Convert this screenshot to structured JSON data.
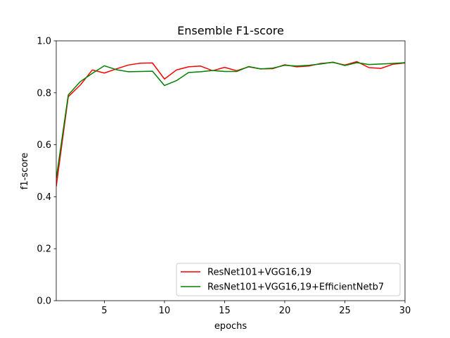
{
  "chart_data": {
    "type": "line",
    "title": "Ensemble F1-score",
    "xlabel": "epochs",
    "ylabel": "f1-score",
    "xlim": [
      1,
      30
    ],
    "ylim": [
      0.0,
      1.0
    ],
    "xticks": [
      5,
      10,
      15,
      20,
      25,
      30
    ],
    "xtick_labels": [
      "5",
      "10",
      "15",
      "20",
      "25",
      "30"
    ],
    "yticks": [
      0.0,
      0.2,
      0.4,
      0.6,
      0.8,
      1.0
    ],
    "ytick_labels": [
      "0.0",
      "0.2",
      "0.4",
      "0.6",
      "0.8",
      "1.0"
    ],
    "grid": false,
    "legend_position": "lower-right",
    "x": [
      1,
      2,
      3,
      4,
      5,
      6,
      7,
      8,
      9,
      10,
      11,
      12,
      13,
      14,
      15,
      16,
      17,
      18,
      19,
      20,
      21,
      22,
      23,
      24,
      25,
      26,
      27,
      28,
      29,
      30
    ],
    "series": [
      {
        "name": "ResNet101+VGG16,19",
        "color": "#ff0000",
        "values": [
          0.44,
          0.785,
          0.83,
          0.888,
          0.876,
          0.892,
          0.907,
          0.914,
          0.915,
          0.853,
          0.888,
          0.9,
          0.903,
          0.885,
          0.898,
          0.885,
          0.9,
          0.892,
          0.893,
          0.908,
          0.9,
          0.903,
          0.913,
          0.917,
          0.907,
          0.92,
          0.897,
          0.894,
          0.91,
          0.915
        ]
      },
      {
        "name": "ResNet101+VGG16,19+EfficientNetb7",
        "color": "#008000",
        "values": [
          0.47,
          0.792,
          0.843,
          0.875,
          0.904,
          0.889,
          0.881,
          0.882,
          0.883,
          0.828,
          0.847,
          0.878,
          0.881,
          0.886,
          0.882,
          0.882,
          0.901,
          0.892,
          0.895,
          0.906,
          0.903,
          0.906,
          0.911,
          0.918,
          0.905,
          0.916,
          0.909,
          0.911,
          0.913,
          0.916
        ]
      }
    ]
  }
}
